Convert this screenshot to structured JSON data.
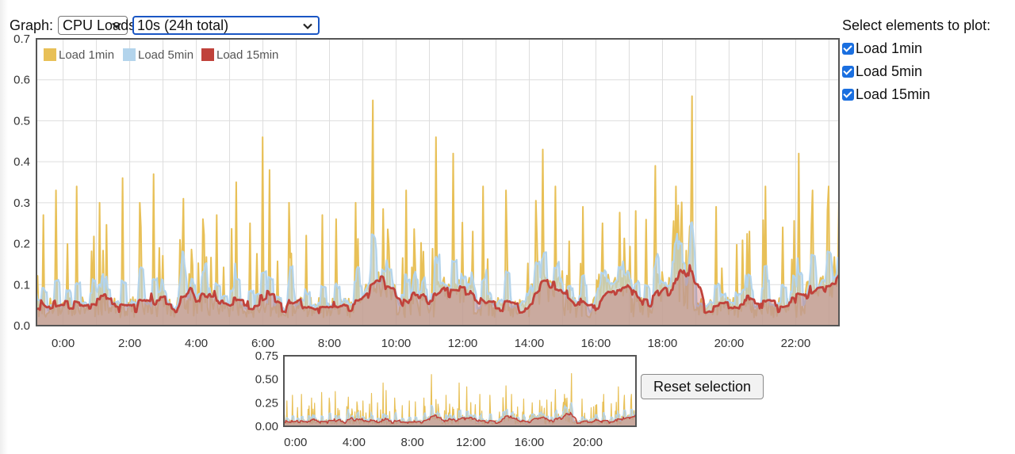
{
  "controls": {
    "graph_label": "Graph:",
    "graph_select_value": "CPU Loads",
    "range_select_value": "10s (24h total)",
    "select_title": "Select elements to plot:",
    "checkboxes": [
      {
        "label": "Load 1min",
        "checked": true
      },
      {
        "label": "Load 5min",
        "checked": true
      },
      {
        "label": "Load 15min",
        "checked": true
      }
    ],
    "reset_label": "Reset selection"
  },
  "colors": {
    "load_1min": "#e8c057",
    "load_5min": "#b3d4ec",
    "load_15min": "#c0423b",
    "grid": "#dddddd",
    "frame": "#555555"
  },
  "chart_data": [
    {
      "type": "area",
      "title": "",
      "xlabel": "",
      "ylabel": "",
      "x_unit": "hours",
      "xlim": [
        -0.8,
        23.3
      ],
      "ylim": [
        0,
        0.7
      ],
      "y_ticks": [
        "0.0",
        "0.1",
        "0.2",
        "0.3",
        "0.4",
        "0.5",
        "0.6",
        "0.7"
      ],
      "x_ticks": [
        {
          "x": 0,
          "label": "0:00"
        },
        {
          "x": 2,
          "label": "2:00"
        },
        {
          "x": 4,
          "label": "4:00"
        },
        {
          "x": 6,
          "label": "6:00"
        },
        {
          "x": 8,
          "label": "8:00"
        },
        {
          "x": 10,
          "label": "10:00"
        },
        {
          "x": 12,
          "label": "12:00"
        },
        {
          "x": 14,
          "label": "14:00"
        },
        {
          "x": 16,
          "label": "16:00"
        },
        {
          "x": 18,
          "label": "18:00"
        },
        {
          "x": 20,
          "label": "20:00"
        },
        {
          "x": 22,
          "label": "22:00"
        }
      ],
      "grid": true,
      "legend_position": "top-left",
      "series": [
        {
          "name": "Load 1min",
          "peaks": [
            [
              -0.6,
              0.27
            ],
            [
              -0.2,
              0.33
            ],
            [
              0.4,
              0.34
            ],
            [
              1.1,
              0.3
            ],
            [
              1.8,
              0.36
            ],
            [
              2.3,
              0.3
            ],
            [
              2.7,
              0.37
            ],
            [
              3.6,
              0.31
            ],
            [
              4.2,
              0.26
            ],
            [
              4.6,
              0.27
            ],
            [
              5.2,
              0.35
            ],
            [
              5.6,
              0.25
            ],
            [
              6.0,
              0.46
            ],
            [
              6.2,
              0.38
            ],
            [
              6.8,
              0.3
            ],
            [
              7.3,
              0.22
            ],
            [
              7.8,
              0.27
            ],
            [
              8.2,
              0.26
            ],
            [
              8.8,
              0.3
            ],
            [
              9.3,
              0.55
            ],
            [
              10.3,
              0.33
            ],
            [
              11.2,
              0.46
            ],
            [
              11.7,
              0.42
            ],
            [
              12.6,
              0.34
            ],
            [
              13.3,
              0.33
            ],
            [
              14.4,
              0.43
            ],
            [
              14.8,
              0.34
            ],
            [
              15.6,
              0.29
            ],
            [
              16.2,
              0.25
            ],
            [
              17.2,
              0.28
            ],
            [
              17.8,
              0.39
            ],
            [
              18.4,
              0.34
            ],
            [
              18.9,
              0.56
            ],
            [
              19.6,
              0.29
            ],
            [
              20.6,
              0.23
            ],
            [
              21.1,
              0.34
            ],
            [
              21.6,
              0.24
            ],
            [
              22.1,
              0.42
            ],
            [
              22.5,
              0.33
            ],
            [
              23.0,
              0.34
            ]
          ]
        },
        {
          "name": "Load 5min",
          "typical_max": 0.2
        },
        {
          "name": "Load 15min",
          "typical_max": 0.12
        }
      ]
    },
    {
      "type": "area",
      "title": "",
      "xlim": [
        -0.8,
        23.3
      ],
      "ylim": [
        0,
        0.75
      ],
      "y_ticks": [
        "0.75",
        "0.50",
        "0.25",
        "0.00"
      ],
      "x_ticks": [
        {
          "x": 0,
          "label": "0:00"
        },
        {
          "x": 4,
          "label": "4:00"
        },
        {
          "x": 8,
          "label": "8:00"
        },
        {
          "x": 12,
          "label": "12:00"
        },
        {
          "x": 16,
          "label": "16:00"
        },
        {
          "x": 20,
          "label": "20:00"
        }
      ]
    }
  ]
}
